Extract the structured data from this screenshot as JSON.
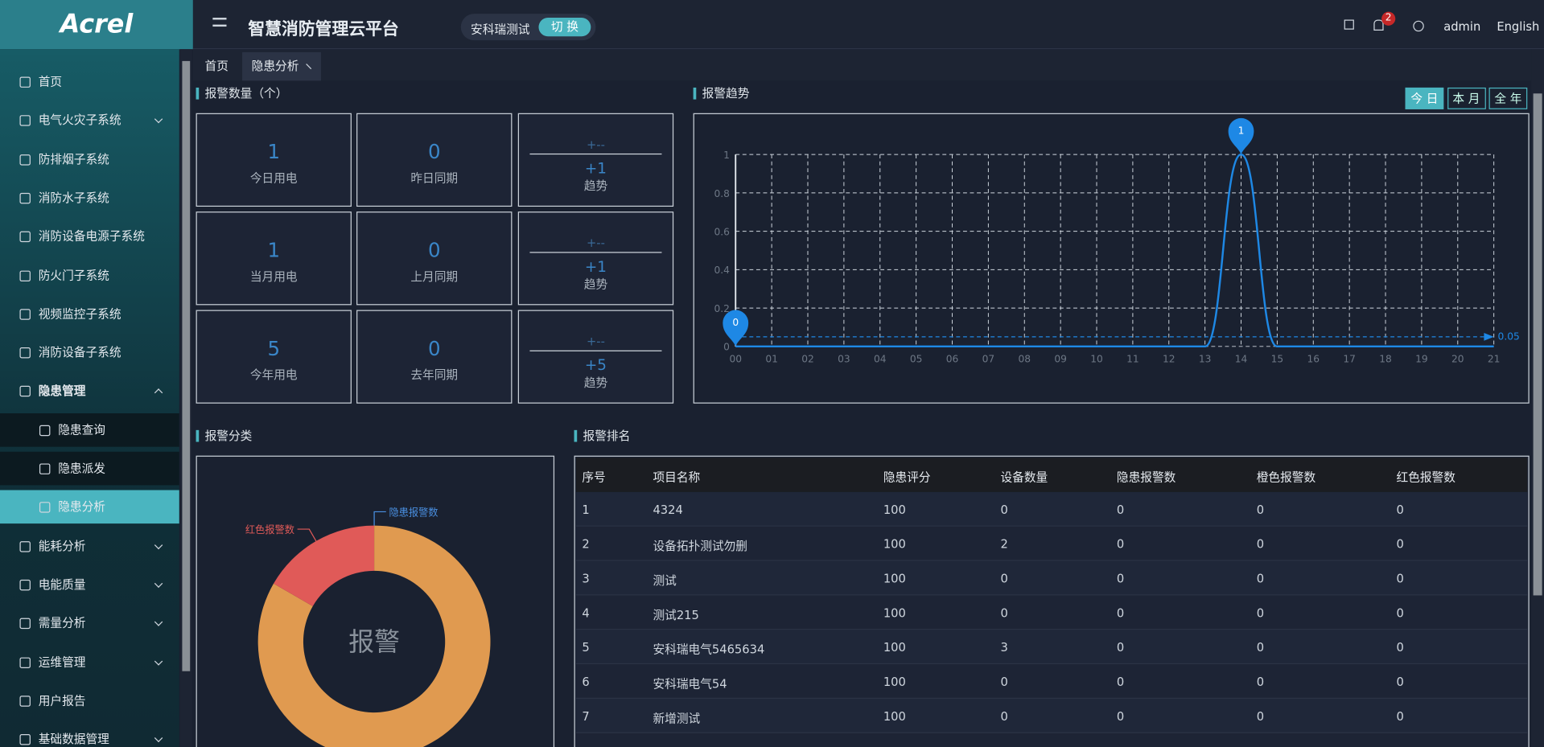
{
  "header": {
    "logo": "Acrel",
    "title": "智慧消防管理云平台",
    "project": "安科瑞测试",
    "switch_button": "切 换",
    "notification_count": "2",
    "user": "admin",
    "language": "English"
  },
  "sidebar": {
    "items": [
      {
        "label": "首页",
        "expandable": false
      },
      {
        "label": "电气火灾子系统",
        "expandable": true
      },
      {
        "label": "防排烟子系统",
        "expandable": false
      },
      {
        "label": "消防水子系统",
        "expandable": false
      },
      {
        "label": "消防设备电源子系统",
        "expandable": false
      },
      {
        "label": "防火门子系统",
        "expandable": false
      },
      {
        "label": "视频监控子系统",
        "expandable": false
      },
      {
        "label": "消防设备子系统",
        "expandable": false
      },
      {
        "label": "隐患管理",
        "expandable": true,
        "expanded": true,
        "children": [
          {
            "label": "隐患查询"
          },
          {
            "label": "隐患派发"
          },
          {
            "label": "隐患分析",
            "active": true
          }
        ]
      },
      {
        "label": "能耗分析",
        "expandable": true
      },
      {
        "label": "电能质量",
        "expandable": true
      },
      {
        "label": "需量分析",
        "expandable": true
      },
      {
        "label": "运维管理",
        "expandable": true
      },
      {
        "label": "用户报告",
        "expandable": false
      },
      {
        "label": "基础数据管理",
        "expandable": true
      }
    ]
  },
  "tabs": [
    {
      "label": "首页"
    },
    {
      "label": "隐患分析",
      "active": true
    }
  ],
  "alarm_count": {
    "title": "报警数量（个）",
    "rows": [
      {
        "current": {
          "value": 1,
          "label": "今日用电"
        },
        "previous": {
          "value": 0,
          "label": "昨日同期"
        },
        "trend": {
          "symbol": "+--",
          "value": "+1",
          "label": "趋势"
        }
      },
      {
        "current": {
          "value": 1,
          "label": "当月用电"
        },
        "previous": {
          "value": 0,
          "label": "上月同期"
        },
        "trend": {
          "symbol": "+--",
          "value": "+1",
          "label": "趋势"
        }
      },
      {
        "current": {
          "value": 5,
          "label": "今年用电"
        },
        "previous": {
          "value": 0,
          "label": "去年同期"
        },
        "trend": {
          "symbol": "+--",
          "value": "+5",
          "label": "趋势"
        }
      }
    ]
  },
  "trend_ranges": [
    {
      "label": "今 日",
      "active": true
    },
    {
      "label": "本 月"
    },
    {
      "label": "全 年"
    }
  ],
  "chart_data": [
    {
      "type": "line",
      "title": "报警趋势",
      "categories": [
        "00",
        "01",
        "02",
        "03",
        "04",
        "05",
        "06",
        "07",
        "08",
        "09",
        "10",
        "11",
        "12",
        "13",
        "14",
        "15",
        "16",
        "17",
        "18",
        "19",
        "20",
        "21"
      ],
      "series": [
        {
          "color": "#1e88e5",
          "values": [
            0,
            0,
            0,
            0,
            0,
            0,
            0,
            0,
            0,
            0,
            0,
            0,
            0,
            0,
            1,
            0,
            0,
            0,
            0,
            0,
            0,
            0
          ]
        }
      ],
      "ylim": [
        0,
        1
      ],
      "yticks": [
        0,
        0.2,
        0.4,
        0.6,
        0.8,
        1
      ],
      "grid": true,
      "smooth": true,
      "mark_line": 0.05
    },
    {
      "type": "pie",
      "title": "报警分类",
      "center_label": "报警",
      "categories": [
        "隐患报警数",
        null,
        "红色报警数"
      ],
      "values": [
        0,
        5,
        1
      ],
      "colors": [
        "#4a90e2",
        "#e09a50",
        "#e05a58"
      ],
      "donut": true
    }
  ],
  "table": {
    "title": "报警排名",
    "header": [
      "序号",
      "项目名称",
      "隐患评分",
      "设备数量",
      "隐患报警数",
      "橙色报警数",
      "红色报警数"
    ],
    "rows": [
      [
        1,
        "4324",
        100,
        0,
        0,
        0,
        0
      ],
      [
        2,
        "设备拓扑测试勿删",
        100,
        2,
        0,
        0,
        0
      ],
      [
        3,
        "测试",
        100,
        0,
        0,
        0,
        0
      ],
      [
        4,
        "测试215",
        100,
        0,
        0,
        0,
        0
      ],
      [
        5,
        "安科瑞电气5465634",
        100,
        3,
        0,
        0,
        0
      ],
      [
        6,
        "安科瑞电气54",
        100,
        0,
        0,
        0,
        0
      ],
      [
        7,
        "新增测试",
        100,
        0,
        0,
        0,
        0
      ]
    ]
  }
}
